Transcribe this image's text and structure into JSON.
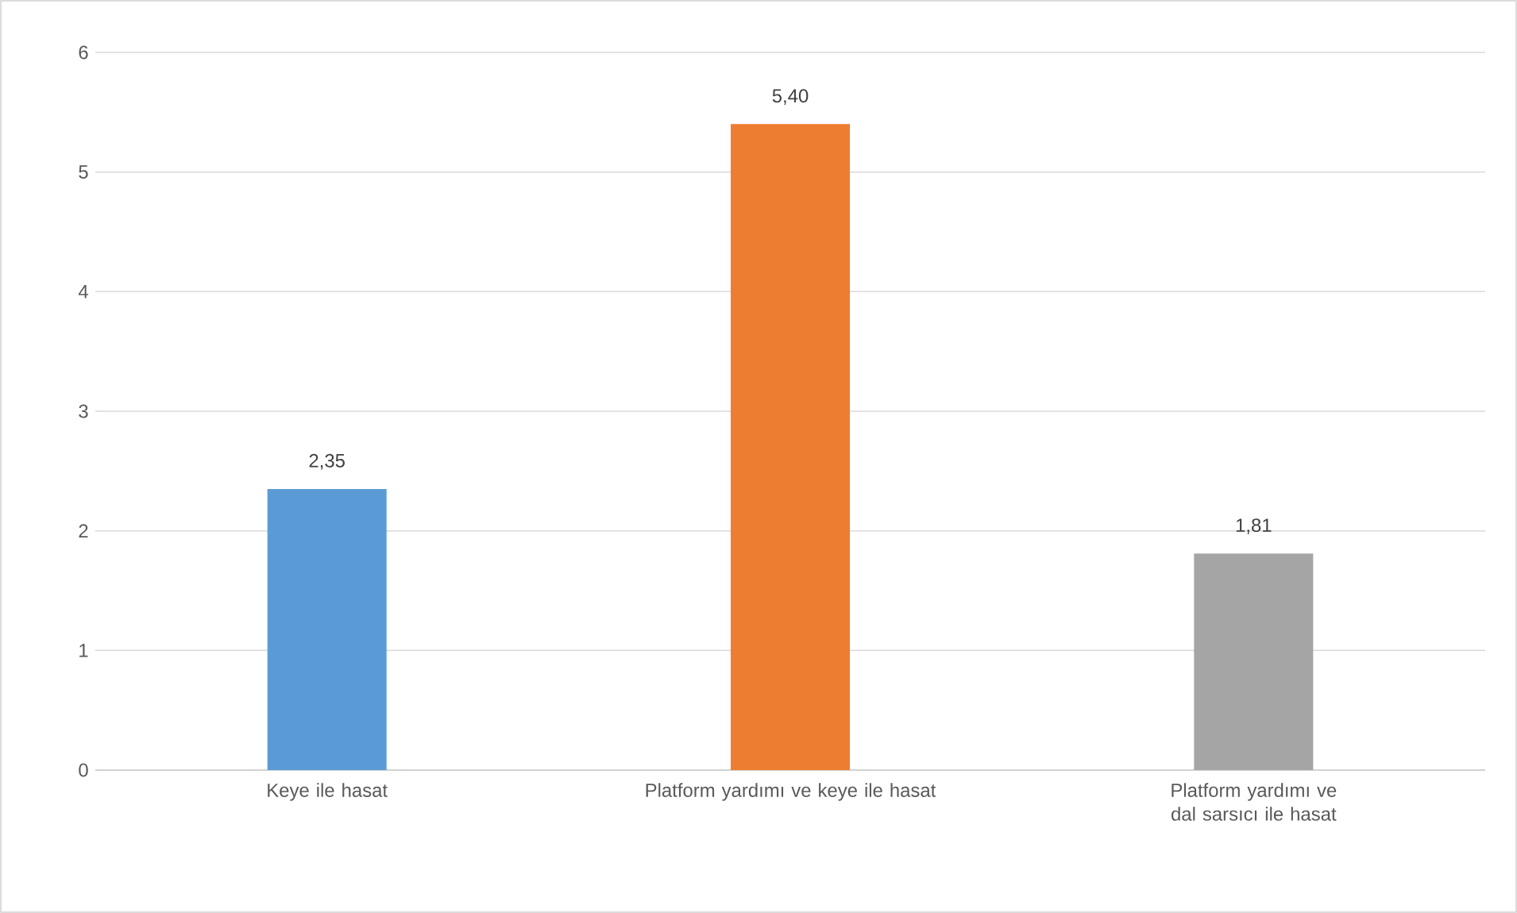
{
  "chart_data": {
    "type": "bar",
    "categories": [
      "Keye ile hasat",
      "Platform yardımı ve keye ile hasat",
      "Platform yardımı ve dal sarsıcı ile hasat"
    ],
    "values": [
      2.35,
      5.4,
      1.81
    ],
    "colors": [
      "#5b9bd5",
      "#ed7d31",
      "#a5a5a5"
    ],
    "value_labels": [
      "2,35",
      "5,40",
      "1,81"
    ],
    "ylim": [
      0,
      6
    ],
    "yticks": [
      0,
      1,
      2,
      3,
      4,
      5,
      6
    ],
    "grid": "y"
  }
}
